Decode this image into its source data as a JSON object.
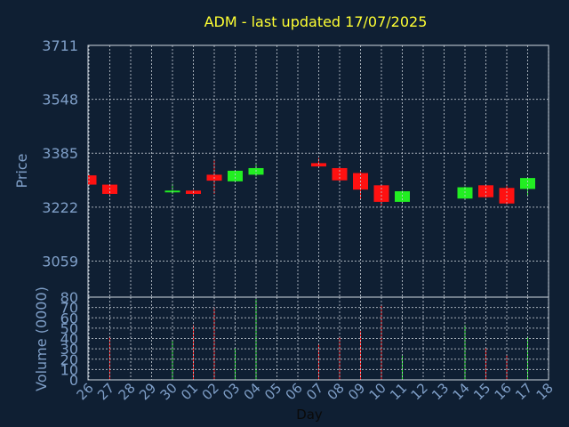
{
  "chart_data": {
    "type": "candlestick",
    "title": "ADM - last updated 17/07/2025",
    "price_panel": {
      "ylabel": "Price",
      "yticks": [
        3059,
        3222,
        3385,
        3548,
        3711
      ],
      "ylim": [
        2950,
        3711
      ]
    },
    "volume_panel": {
      "ylabel": "Volume (0000)",
      "yticks": [
        0,
        10,
        20,
        30,
        40,
        50,
        60,
        70,
        80
      ],
      "ylim": [
        0,
        80
      ]
    },
    "xlabel": "Day",
    "x_ticks": [
      "26",
      "27",
      "28",
      "29",
      "30",
      "01",
      "02",
      "03",
      "04",
      "05",
      "06",
      "07",
      "08",
      "09",
      "10",
      "11",
      "12",
      "13",
      "14",
      "15",
      "16",
      "17",
      "18"
    ],
    "colors": {
      "up": "#22ee22",
      "down": "#ff1111",
      "background": "#0f1f33",
      "title": "#ffff33",
      "axis": "#7f9fc8"
    },
    "candles": [
      {
        "day": "26",
        "open": 3318,
        "close": 3290,
        "high": 3320,
        "low": 3288,
        "volume": 0
      },
      {
        "day": "27",
        "open": 3290,
        "close": 3262,
        "high": 3292,
        "low": 3255,
        "volume": 42
      },
      {
        "day": "30",
        "open": 3268,
        "close": 3272,
        "high": 3293,
        "low": 3262,
        "volume": 38
      },
      {
        "day": "01",
        "open": 3272,
        "close": 3262,
        "high": 3274,
        "low": 3258,
        "volume": 53
      },
      {
        "day": "02",
        "open": 3320,
        "close": 3302,
        "high": 3365,
        "low": 3262,
        "volume": 70
      },
      {
        "day": "03",
        "open": 3300,
        "close": 3332,
        "high": 3334,
        "low": 3298,
        "volume": 30
      },
      {
        "day": "04",
        "open": 3320,
        "close": 3340,
        "high": 3350,
        "low": 3315,
        "volume": 78
      },
      {
        "day": "07",
        "open": 3355,
        "close": 3345,
        "high": 3370,
        "low": 3343,
        "volume": 35
      },
      {
        "day": "08",
        "open": 3340,
        "close": 3303,
        "high": 3342,
        "low": 3296,
        "volume": 42
      },
      {
        "day": "09",
        "open": 3325,
        "close": 3275,
        "high": 3328,
        "low": 3245,
        "volume": 47
      },
      {
        "day": "10",
        "open": 3288,
        "close": 3238,
        "high": 3290,
        "low": 3225,
        "volume": 72
      },
      {
        "day": "11",
        "open": 3238,
        "close": 3270,
        "high": 3272,
        "low": 3236,
        "volume": 23
      },
      {
        "day": "14",
        "open": 3248,
        "close": 3282,
        "high": 3284,
        "low": 3246,
        "volume": 53
      },
      {
        "day": "15",
        "open": 3288,
        "close": 3252,
        "high": 3290,
        "low": 3250,
        "volume": 31
      },
      {
        "day": "16",
        "open": 3280,
        "close": 3233,
        "high": 3290,
        "low": 3230,
        "volume": 24
      },
      {
        "day": "17",
        "open": 3277,
        "close": 3310,
        "high": 3312,
        "low": 3255,
        "volume": 42
      }
    ]
  }
}
